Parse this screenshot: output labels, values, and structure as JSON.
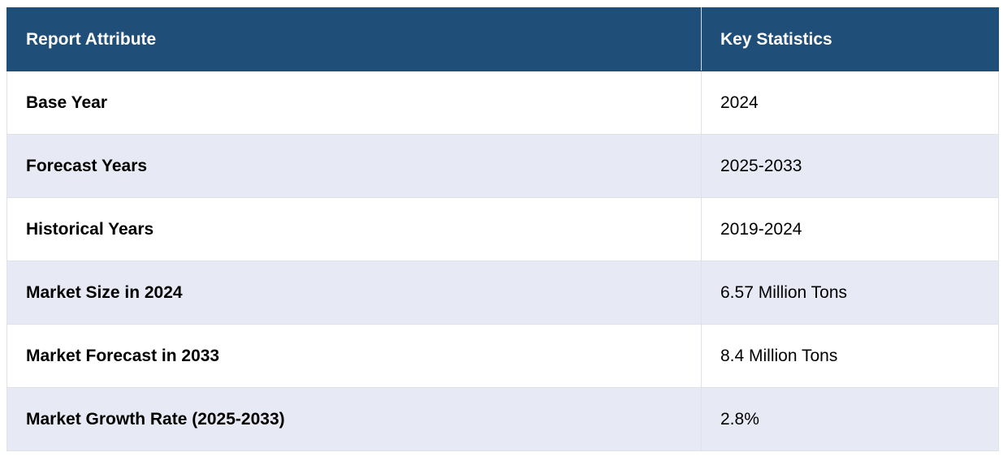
{
  "table": {
    "headers": [
      "Report Attribute",
      "Key Statistics"
    ],
    "rows": [
      {
        "attribute": "Base Year",
        "value": "2024"
      },
      {
        "attribute": "Forecast Years",
        "value": "2025-2033"
      },
      {
        "attribute": "Historical Years",
        "value": "2019-2024"
      },
      {
        "attribute": "Market Size in 2024",
        "value": "6.57 Million Tons"
      },
      {
        "attribute": "Market Forecast in 2033",
        "value": "8.4 Million Tons"
      },
      {
        "attribute": "Market Growth Rate (2025-2033)",
        "value": "2.8%"
      }
    ]
  },
  "colors": {
    "header_bg": "#1f4e79",
    "header_text": "#ffffff",
    "row_alt_bg": "#e7e9f4",
    "row_bg": "#ffffff"
  }
}
